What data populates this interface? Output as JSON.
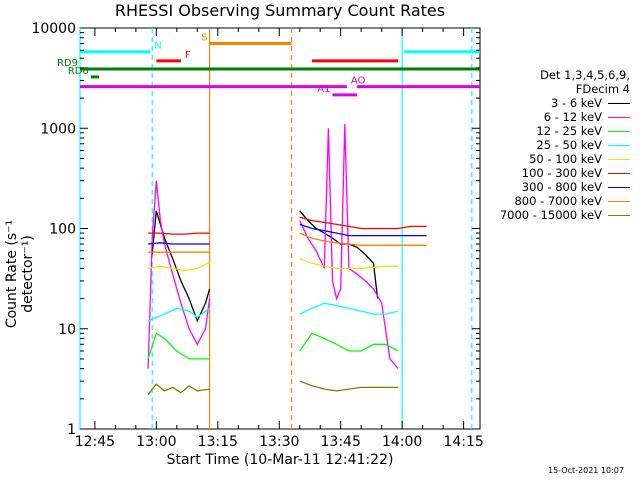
{
  "chart_data": {
    "type": "line",
    "title": "RHESSI Observing Summary Count Rates",
    "xlabel": "Start Time (10-Mar-11 12:41:22)",
    "ylabel": "Count Rate (s⁻¹ detector⁻¹)",
    "yscale": "log",
    "ylim": [
      1,
      10000
    ],
    "xlim": [
      "12:41:22",
      "14:19:00"
    ],
    "x_ticks": [
      "12:45",
      "13:00",
      "13:15",
      "13:30",
      "13:45",
      "14:00",
      "14:15"
    ],
    "y_ticks": [
      "1",
      "10",
      "100",
      "1000",
      "10000"
    ],
    "time_stamp": "15-Oct-2021 10:07",
    "legend": {
      "header": [
        "Det 1,3,4,5,6,9,",
        "FDecim 4"
      ],
      "position": "right"
    },
    "series": [
      {
        "name": "3 - 6 keV",
        "color": "#000000",
        "segments": [
          {
            "x": [
              "12:59",
              "13:00",
              "13:01",
              "13:02",
              "13:04",
              "13:06",
              "13:08",
              "13:10",
              "13:12",
              "13:13"
            ],
            "y": [
              55,
              150,
              110,
              80,
              50,
              30,
              20,
              12,
              18,
              25
            ]
          },
          {
            "x": [
              "13:35",
              "13:37",
              "13:39",
              "13:41",
              "13:43",
              "13:45",
              "13:47",
              "13:49",
              "13:51",
              "13:53",
              "13:54"
            ],
            "y": [
              150,
              120,
              100,
              90,
              80,
              70,
              70,
              65,
              55,
              45,
              20
            ]
          }
        ]
      },
      {
        "name": "6 - 12 keV",
        "color": "#ff00ff",
        "segments": [
          {
            "x": [
              "12:58",
              "12:59",
              "13:00",
              "13:01",
              "13:02",
              "13:04",
              "13:06",
              "13:08",
              "13:10",
              "13:12",
              "13:13"
            ],
            "y": [
              4,
              80,
              300,
              120,
              70,
              35,
              18,
              10,
              7,
              10,
              20
            ]
          },
          {
            "x": [
              "13:35",
              "13:37",
              "13:39",
              "13:41",
              "13:42",
              "13:43",
              "13:44",
              "13:45",
              "13:46",
              "13:47",
              "13:49",
              "13:51",
              "13:53",
              "13:55",
              "13:57",
              "13:59"
            ],
            "y": [
              120,
              80,
              60,
              40,
              1000,
              30,
              20,
              25,
              1100,
              40,
              35,
              30,
              25,
              18,
              5,
              4
            ]
          }
        ]
      },
      {
        "name": "12 - 25 keV",
        "color": "#00ff00",
        "segments": [
          {
            "x": [
              "12:58",
              "13:00",
              "13:02",
              "13:05",
              "13:08",
              "13:10",
              "13:13"
            ],
            "y": [
              5,
              9,
              8,
              6,
              5,
              5,
              5
            ]
          },
          {
            "x": [
              "13:35",
              "13:38",
              "13:41",
              "13:44",
              "13:47",
              "13:50",
              "13:53",
              "13:56",
              "13:59"
            ],
            "y": [
              6,
              9,
              8,
              7,
              6,
              6,
              7,
              7,
              6
            ]
          }
        ]
      },
      {
        "name": "25 - 50 keV",
        "color": "#00ffff",
        "segments": [
          {
            "x": [
              "12:58",
              "13:00",
              "13:02",
              "13:05",
              "13:08",
              "13:10",
              "13:13"
            ],
            "y": [
              12,
              13,
              14,
              16,
              15,
              13,
              16
            ]
          },
          {
            "x": [
              "13:35",
              "13:38",
              "13:41",
              "13:44",
              "13:47",
              "13:50",
              "13:53",
              "13:56",
              "13:59"
            ],
            "y": [
              14,
              16,
              18,
              17,
              16,
              15,
              14,
              14,
              15
            ]
          }
        ]
      },
      {
        "name": "50 - 100 keV",
        "color": "#e6e600",
        "segments": [
          {
            "x": [
              "12:58",
              "13:01",
              "13:04",
              "13:07",
              "13:10",
              "13:13"
            ],
            "y": [
              40,
              42,
              40,
              38,
              40,
              46
            ]
          },
          {
            "x": [
              "13:35",
              "13:38",
              "13:41",
              "13:44",
              "13:47",
              "13:50",
              "13:53",
              "13:56",
              "13:59"
            ],
            "y": [
              50,
              45,
              42,
              40,
              40,
              40,
              41,
              42,
              42
            ]
          }
        ]
      },
      {
        "name": "100 - 300 keV",
        "color": "#ff0000",
        "segments": [
          {
            "x": [
              "12:58",
              "13:01",
              "13:04",
              "13:07",
              "13:10",
              "13:13"
            ],
            "y": [
              90,
              90,
              88,
              88,
              90,
              90
            ]
          },
          {
            "x": [
              "13:35",
              "13:38",
              "13:41",
              "13:44",
              "13:47",
              "13:50",
              "13:53",
              "13:56",
              "13:59",
              "14:02",
              "14:06"
            ],
            "y": [
              130,
              120,
              115,
              110,
              105,
              100,
              100,
              100,
              100,
              105,
              105
            ]
          }
        ]
      },
      {
        "name": "300 - 800 keV",
        "color": "#0000ff",
        "segments": [
          {
            "x": [
              "12:58",
              "13:01",
              "13:04",
              "13:07",
              "13:10",
              "13:13"
            ],
            "y": [
              70,
              72,
              70,
              70,
              70,
              70
            ]
          },
          {
            "x": [
              "13:35",
              "13:38",
              "13:41",
              "13:44",
              "13:47",
              "13:50",
              "13:53",
              "13:56",
              "13:59",
              "14:02",
              "14:06"
            ],
            "y": [
              110,
              100,
              95,
              90,
              85,
              85,
              85,
              85,
              85,
              85,
              85
            ]
          }
        ]
      },
      {
        "name": "800 - 7000 keV",
        "color": "#ff8000",
        "segments": [
          {
            "x": [
              "12:58",
              "13:01",
              "13:04",
              "13:07",
              "13:10",
              "13:13"
            ],
            "y": [
              58,
              58,
              58,
              58,
              58,
              58
            ]
          },
          {
            "x": [
              "13:35",
              "13:38",
              "13:41",
              "13:44",
              "13:47",
              "13:50",
              "13:53",
              "13:56",
              "13:59",
              "14:02",
              "14:06"
            ],
            "y": [
              90,
              80,
              75,
              72,
              70,
              68,
              68,
              68,
              68,
              68,
              68
            ]
          }
        ]
      },
      {
        "name": "7000 - 15000 keV",
        "color": "#808000",
        "segments": [
          {
            "x": [
              "12:58",
              "13:00",
              "13:02",
              "13:04",
              "13:06",
              "13:08",
              "13:10",
              "13:13"
            ],
            "y": [
              2.2,
              2.8,
              2.4,
              2.6,
              2.3,
              2.7,
              2.4,
              2.5
            ]
          },
          {
            "x": [
              "13:35",
              "13:38",
              "13:41",
              "13:44",
              "13:47",
              "13:50",
              "13:53",
              "13:56",
              "13:59"
            ],
            "y": [
              3,
              2.7,
              2.5,
              2.4,
              2.5,
              2.6,
              2.6,
              2.6,
              2.6
            ]
          }
        ]
      }
    ],
    "flag_bars": [
      {
        "label": "N",
        "color": "#00ffff",
        "y": 5800,
        "ranges": [
          [
            "12:41:22",
            "12:58:30"
          ],
          [
            "14:00:30",
            "14:19:00"
          ]
        ]
      },
      {
        "label": "S",
        "color": "#ff8000",
        "y": 7000,
        "ranges": [
          [
            "13:13",
            "13:33"
          ]
        ]
      },
      {
        "label": "F",
        "color": "#ff0000",
        "y": 4700,
        "ranges": [
          [
            "13:00",
            "13:06"
          ],
          [
            "13:38",
            "13:59"
          ]
        ]
      },
      {
        "label": "RD9",
        "color": "#008000",
        "y": 3900,
        "ranges": [
          [
            "12:41:22",
            "14:19:00"
          ]
        ]
      },
      {
        "label": "RD6",
        "color": "#008000",
        "y": 3250,
        "ranges": [
          [
            "12:44",
            "12:46"
          ]
        ]
      },
      {
        "label": "AO",
        "color": "#e000e0",
        "y": 2600,
        "ranges": [
          [
            "12:41:22",
            "13:46:30"
          ],
          [
            "13:49",
            "14:19:00"
          ]
        ]
      },
      {
        "label": "A1",
        "color": "#e000e0",
        "y": 2150,
        "ranges": [
          [
            "13:43",
            "13:49"
          ]
        ]
      }
    ],
    "markers": [
      {
        "type": "solid",
        "color": "#00ffff",
        "x": "12:41:22"
      },
      {
        "type": "dashed",
        "color": "#00ffff",
        "x": "12:59"
      },
      {
        "type": "solid",
        "color": "#ff8000",
        "x": "13:13"
      },
      {
        "type": "dashed",
        "color": "#ff8000",
        "x": "13:33"
      },
      {
        "type": "solid",
        "color": "#00ffff",
        "x": "14:00"
      },
      {
        "type": "dashed",
        "color": "#00ffff",
        "x": "14:17"
      }
    ]
  }
}
